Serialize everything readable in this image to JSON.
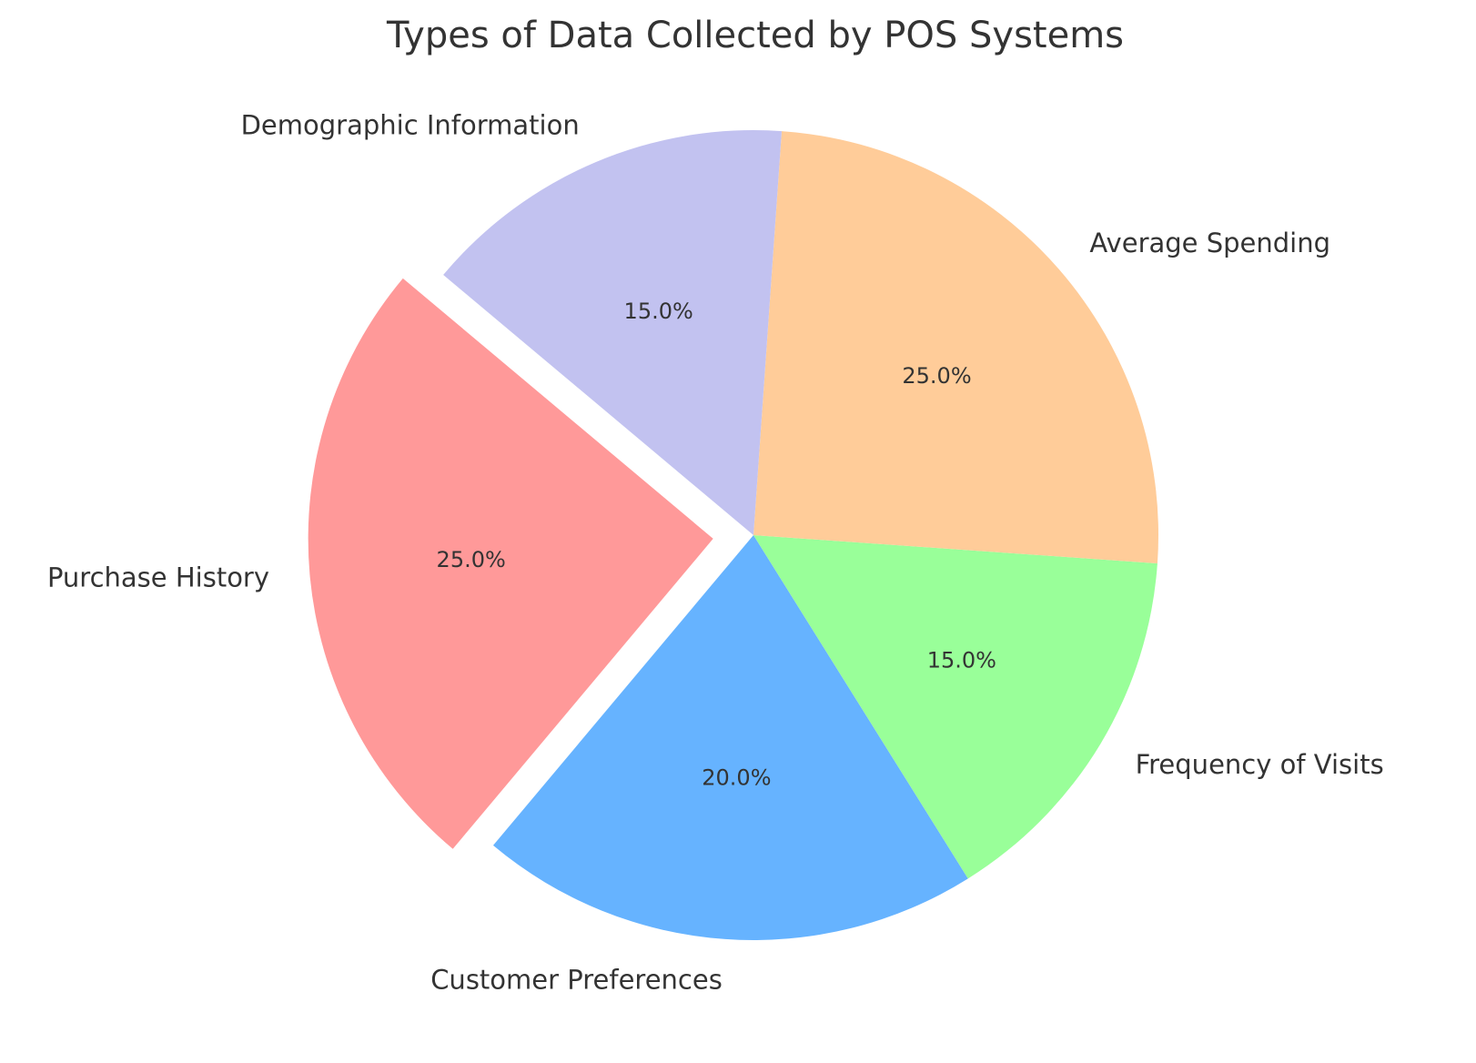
{
  "chart_data": {
    "type": "pie",
    "title": "Types of Data Collected by POS Systems",
    "categories": [
      "Purchase History",
      "Customer Preferences",
      "Frequency of Visits",
      "Average Spending",
      "Demographic Information"
    ],
    "values": [
      25,
      20,
      15,
      25,
      15
    ],
    "percent_labels": [
      "25.0%",
      "20.0%",
      "15.0%",
      "25.0%",
      "15.0%"
    ],
    "colors": [
      "#ff9999",
      "#66b3ff",
      "#99ff99",
      "#ffcc99",
      "#c2c2f0"
    ],
    "exploded": [
      true,
      false,
      false,
      false,
      false
    ],
    "start_angle_deg": 140,
    "direction": "counterclockwise",
    "legend": "none"
  }
}
